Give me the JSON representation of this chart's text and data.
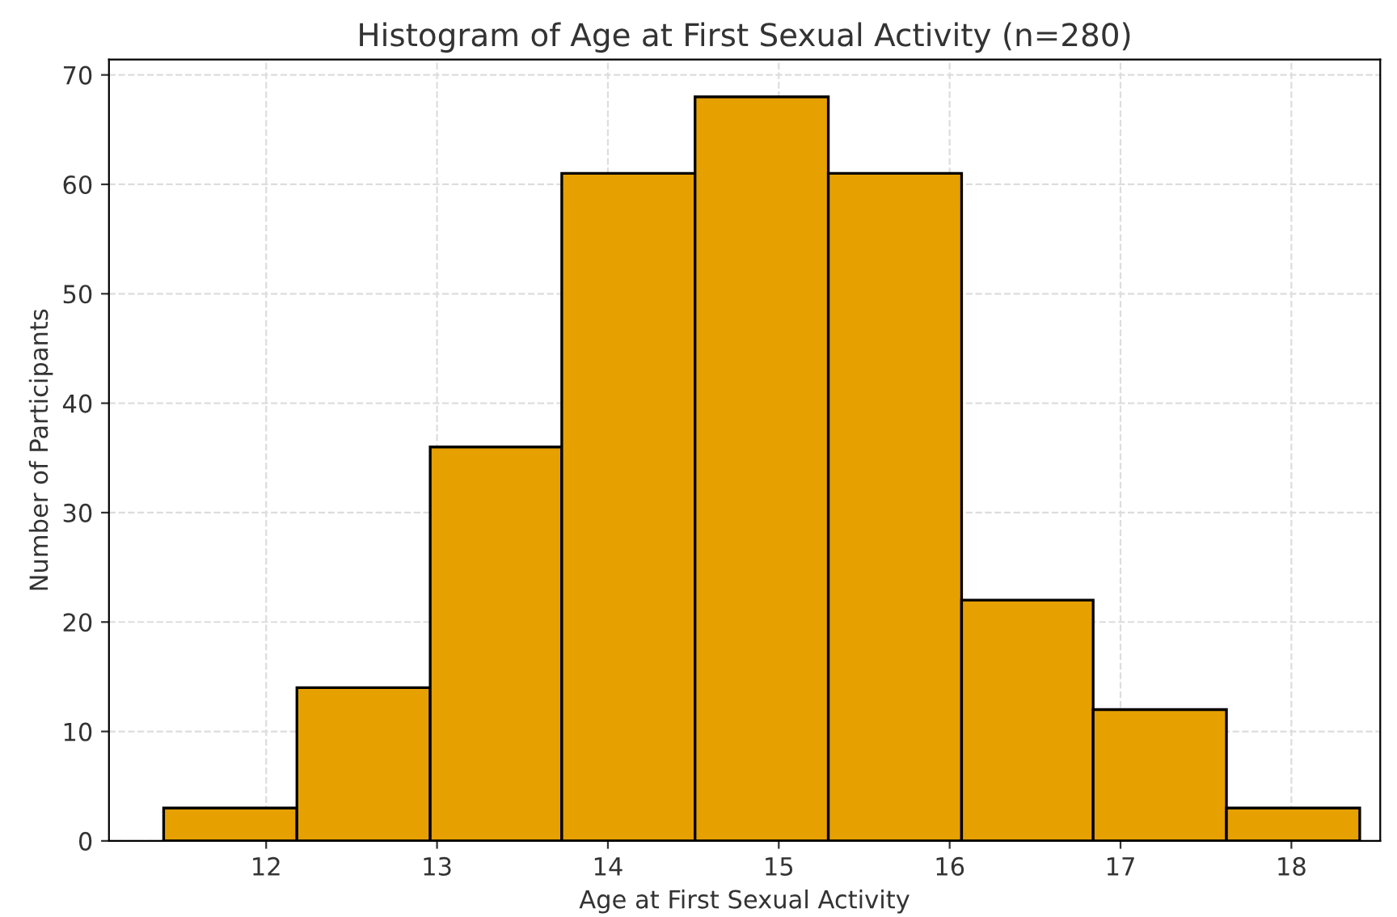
{
  "chart_data": {
    "type": "histogram",
    "title": "Histogram of Age at First Sexual Activity (n=280)",
    "xlabel": "Age at First Sexual Activity",
    "ylabel": "Number of Participants",
    "bins": [
      11.4,
      12.18,
      12.96,
      13.73,
      14.51,
      15.29,
      16.07,
      16.84,
      17.62,
      18.4
    ],
    "values": [
      3,
      14,
      36,
      61,
      68,
      61,
      22,
      12,
      3
    ],
    "color": "#e6a000",
    "xlim": [
      11.08,
      18.52
    ],
    "xticks": [
      12,
      13,
      14,
      15,
      16,
      17,
      18
    ],
    "ylim": [
      0,
      71.4
    ],
    "yticks": [
      0,
      10,
      20,
      30,
      40,
      50,
      60,
      70
    ],
    "grid": true
  }
}
